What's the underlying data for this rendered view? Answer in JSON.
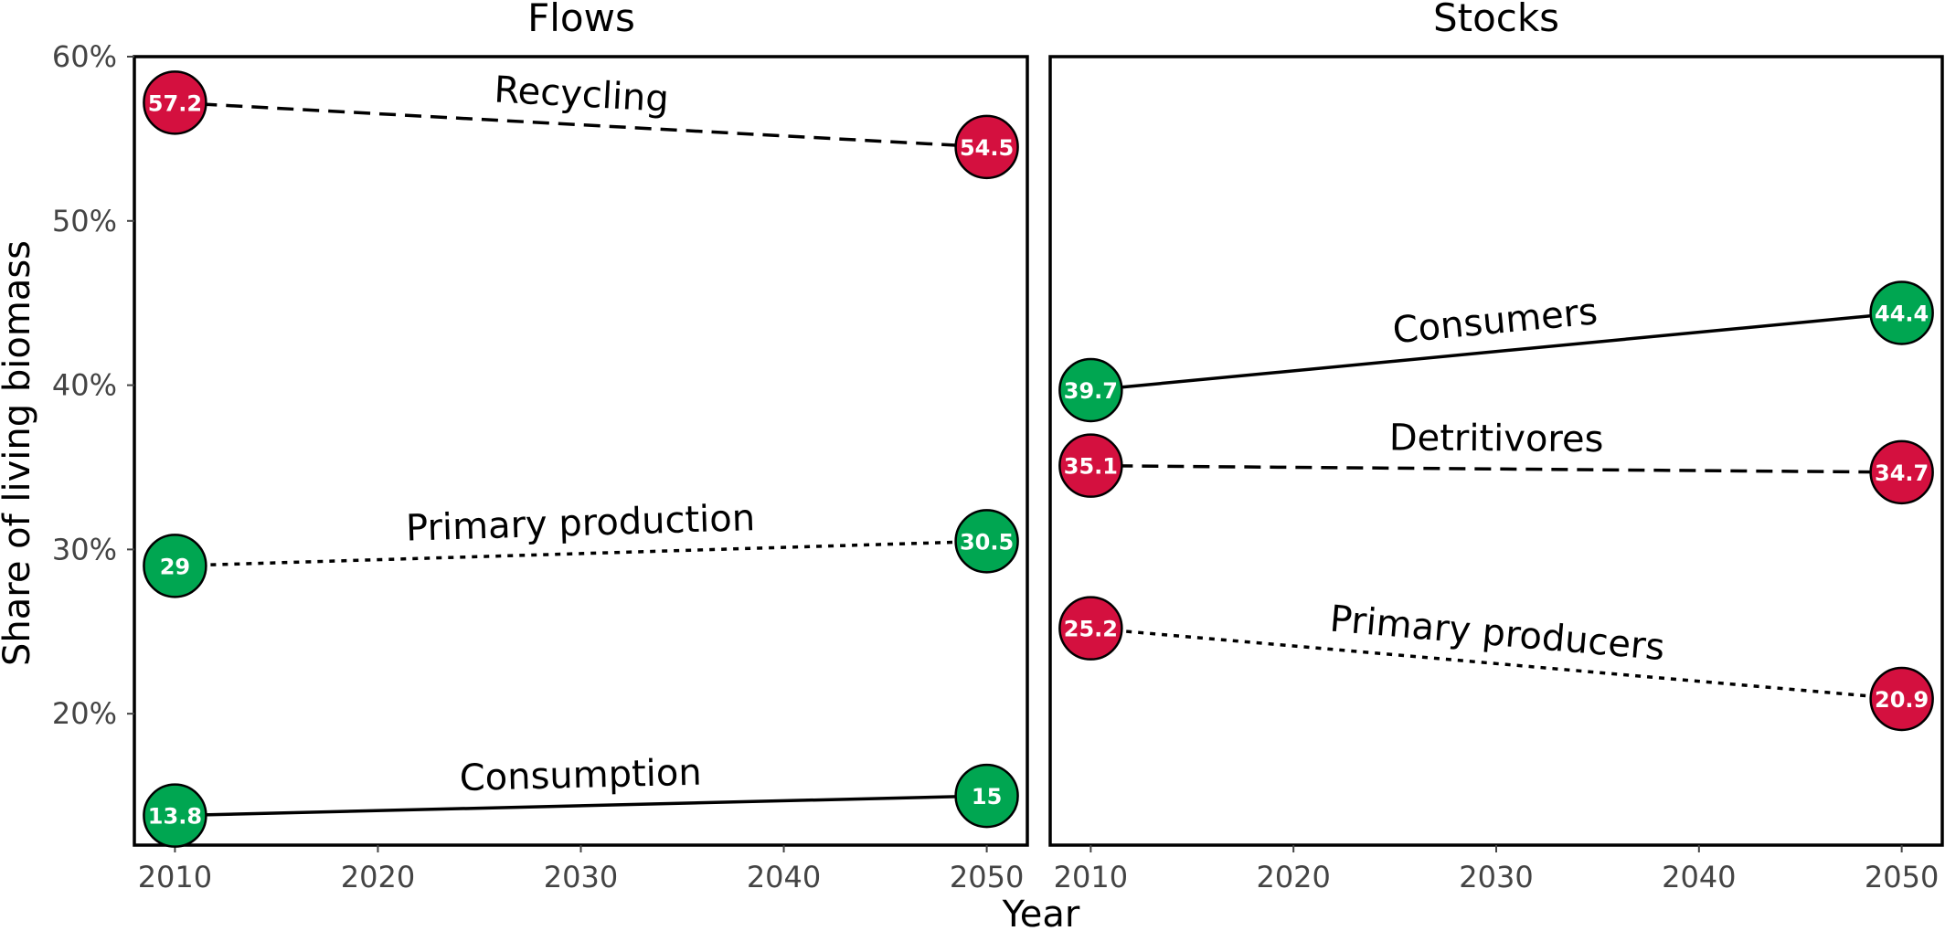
{
  "chart_data": {
    "type": "line",
    "ylabel": "Share of living biomass",
    "xlabel": "Year",
    "ylim": [
      12,
      60
    ],
    "y_ticks": [
      20,
      30,
      40,
      50,
      60
    ],
    "y_tick_labels": [
      "20%",
      "30%",
      "40%",
      "50%",
      "60%"
    ],
    "x_ticks": [
      2010,
      2020,
      2030,
      2040,
      2050
    ],
    "x_tick_labels": [
      "2010",
      "2020",
      "2030",
      "2040",
      "2050"
    ],
    "xlim": [
      2008,
      2052
    ],
    "colors": {
      "increase": "#00a651",
      "decrease": "#d4103f"
    },
    "panels": [
      {
        "title": "Flows",
        "series": [
          {
            "name": "Recycling",
            "x": [
              2010,
              2050
            ],
            "values": [
              57.2,
              54.5
            ],
            "point_labels": [
              "57.2",
              "54.5"
            ],
            "line_style": "dashed",
            "trend": "decrease"
          },
          {
            "name": "Primary production",
            "x": [
              2010,
              2050
            ],
            "values": [
              29,
              30.5
            ],
            "point_labels": [
              "29",
              "30.5"
            ],
            "line_style": "dotted",
            "trend": "increase"
          },
          {
            "name": "Consumption",
            "x": [
              2010,
              2050
            ],
            "values": [
              13.8,
              15
            ],
            "point_labels": [
              "13.8",
              "15"
            ],
            "line_style": "solid",
            "trend": "increase"
          }
        ]
      },
      {
        "title": "Stocks",
        "series": [
          {
            "name": "Consumers",
            "x": [
              2010,
              2050
            ],
            "values": [
              39.7,
              44.4
            ],
            "point_labels": [
              "39.7",
              "44.4"
            ],
            "line_style": "solid",
            "trend": "increase"
          },
          {
            "name": "Detritivores",
            "x": [
              2010,
              2050
            ],
            "values": [
              35.1,
              34.7
            ],
            "point_labels": [
              "35.1",
              "34.7"
            ],
            "line_style": "dashed",
            "trend": "decrease"
          },
          {
            "name": "Primary producers",
            "x": [
              2010,
              2050
            ],
            "values": [
              25.2,
              20.9
            ],
            "point_labels": [
              "25.2",
              "20.9"
            ],
            "line_style": "dotted",
            "trend": "decrease"
          }
        ]
      }
    ]
  }
}
